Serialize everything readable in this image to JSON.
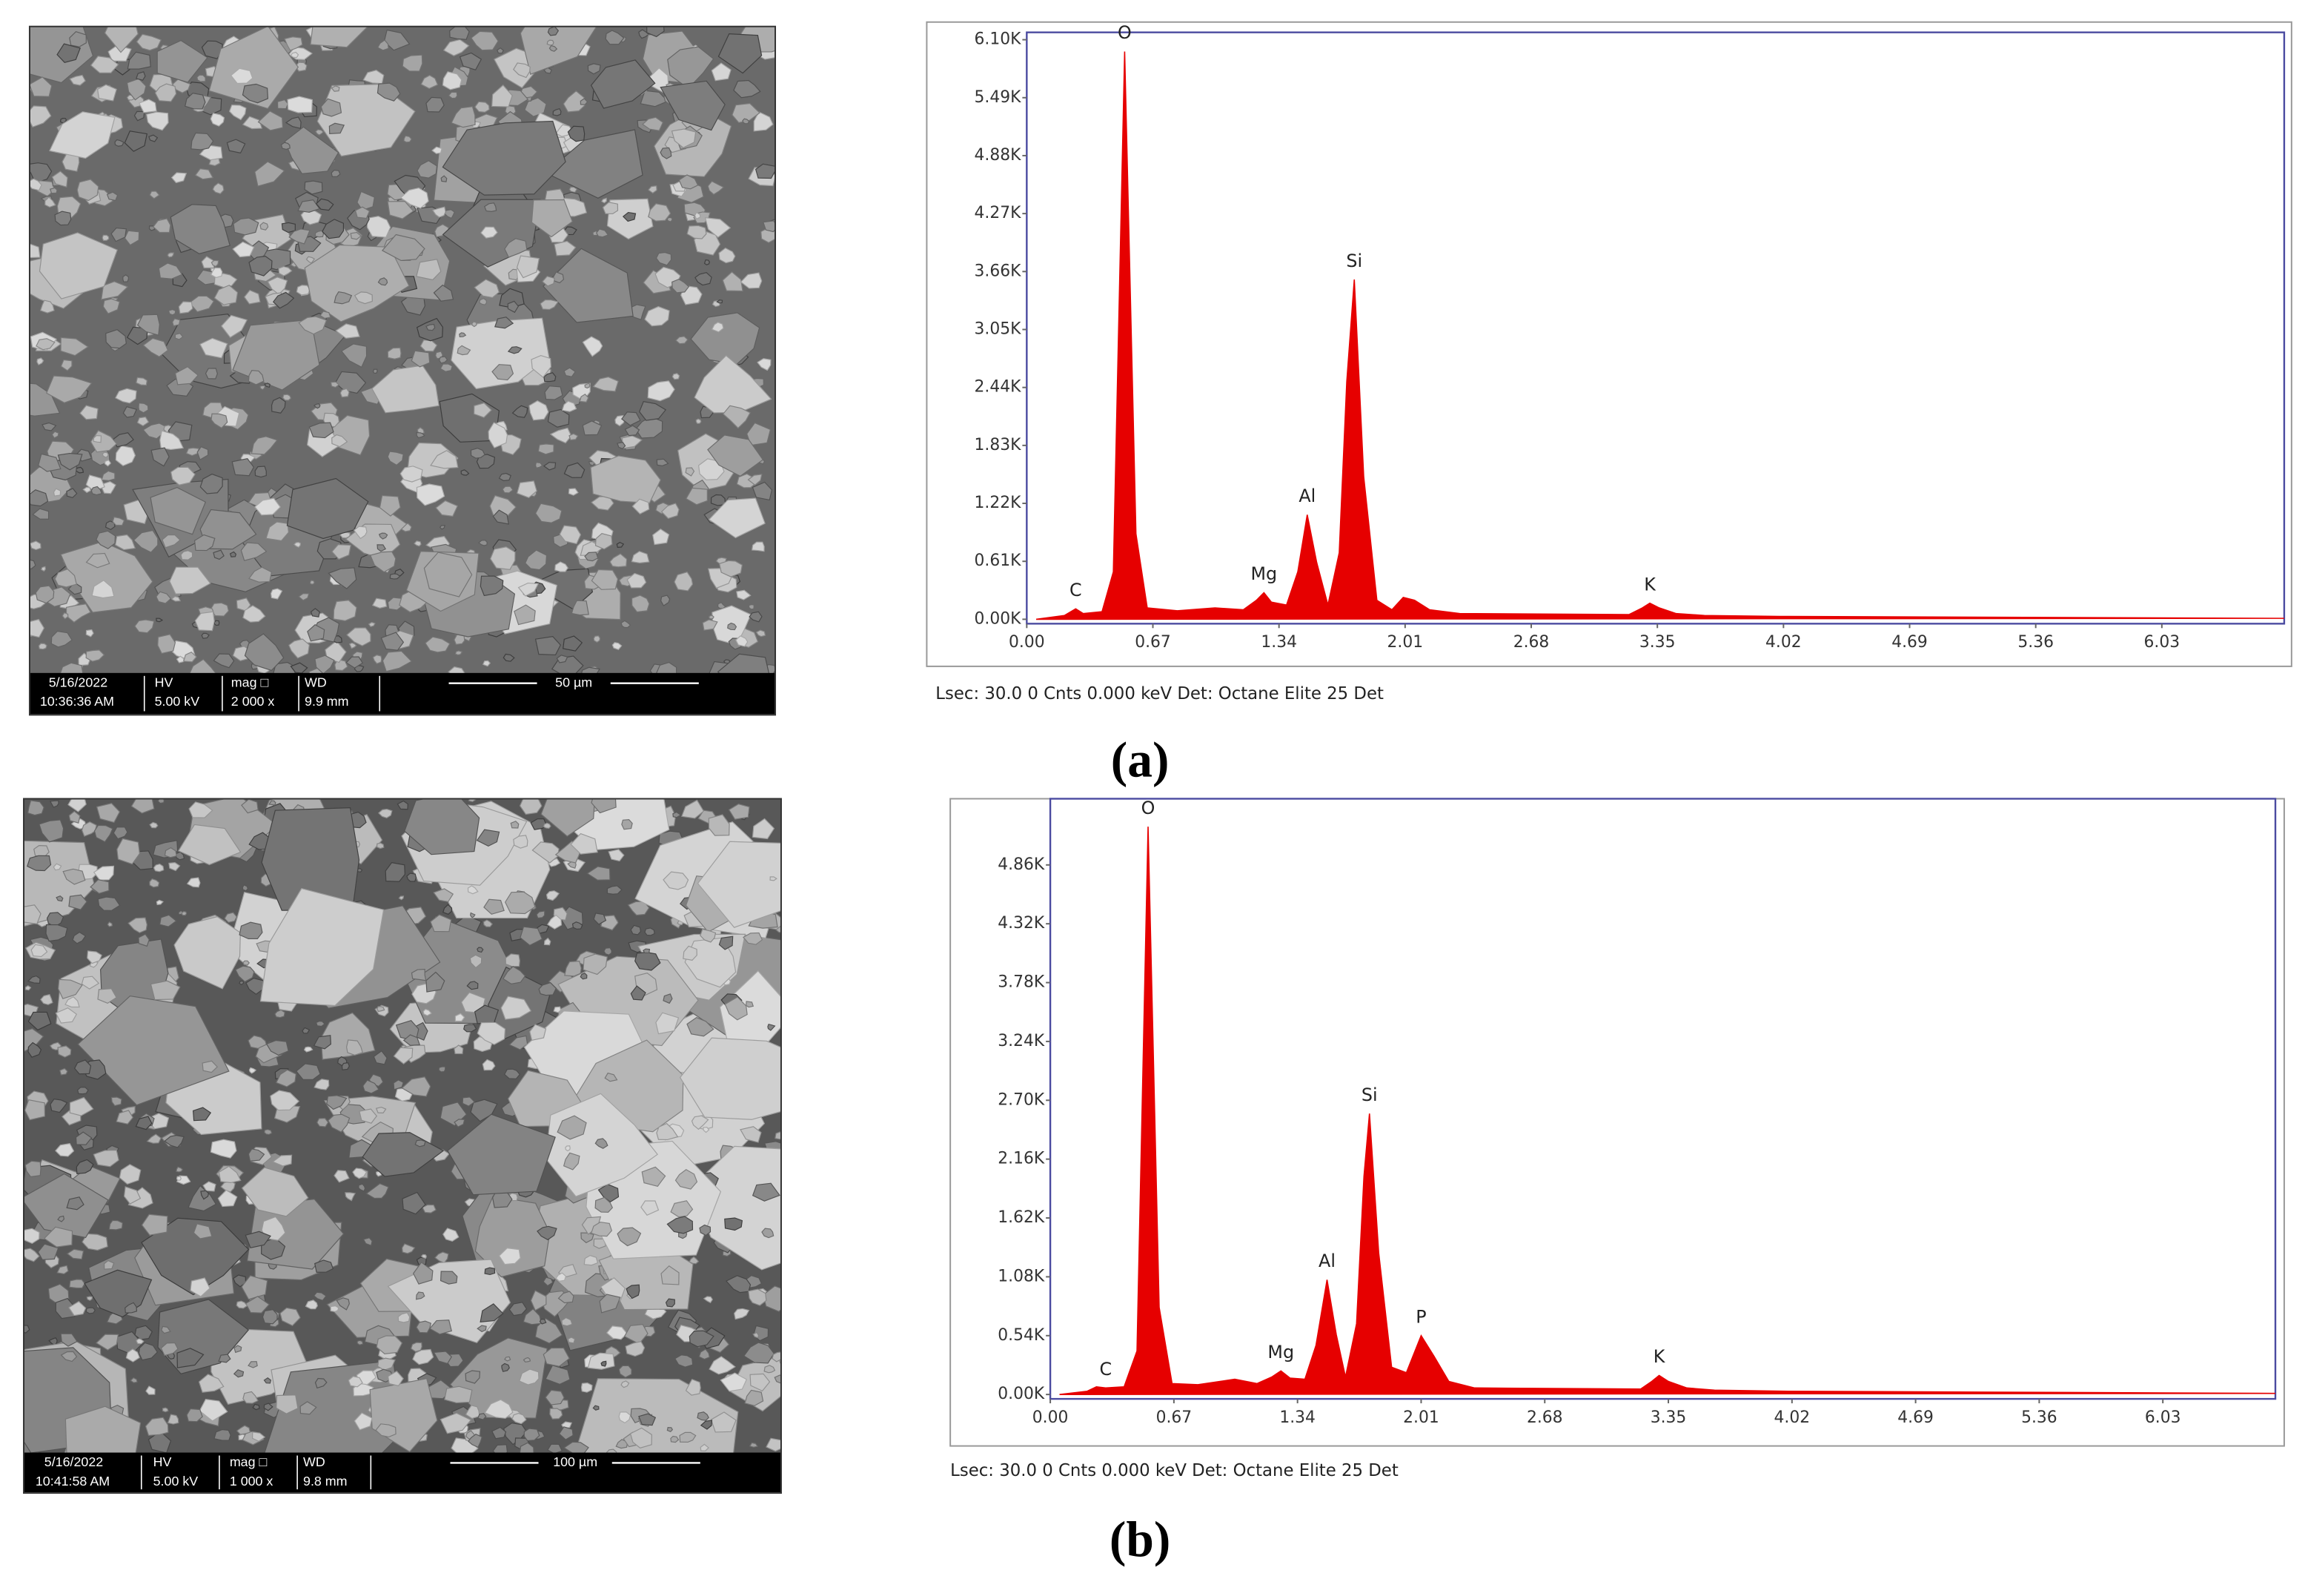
{
  "chart_data": [
    {
      "type": "area",
      "color": "#e60000",
      "x": [
        0.05,
        0.2,
        0.26,
        0.3,
        0.4,
        0.46,
        0.52,
        0.58,
        0.64,
        0.8,
        1.0,
        1.15,
        1.22,
        1.26,
        1.3,
        1.38,
        1.44,
        1.49,
        1.54,
        1.6,
        1.66,
        1.7,
        1.74,
        1.79,
        1.86,
        1.94,
        2.0,
        2.06,
        2.14,
        2.3,
        3.2,
        3.27,
        3.31,
        3.36,
        3.45,
        3.6,
        4.0,
        6.68
      ],
      "values": [
        0,
        40,
        110,
        60,
        80,
        500,
        5976,
        900,
        120,
        90,
        120,
        100,
        200,
        280,
        180,
        150,
        500,
        1100,
        600,
        150,
        700,
        2500,
        3576,
        1500,
        200,
        100,
        230,
        200,
        100,
        60,
        50,
        120,
        170,
        120,
        60,
        40,
        30,
        10
      ],
      "peak_labels": [
        null,
        null,
        "C",
        null,
        null,
        null,
        "O",
        null,
        null,
        null,
        null,
        null,
        null,
        "Mg",
        null,
        null,
        null,
        "Al",
        null,
        null,
        null,
        null,
        "Si",
        null,
        null,
        null,
        null,
        null,
        null,
        null,
        null,
        null,
        "K",
        null,
        null,
        null,
        null,
        null
      ],
      "xlim": [
        0,
        6.68
      ],
      "ylim": [
        0,
        6100
      ],
      "xticks": [
        {
          "value": 0,
          "label": "0.00"
        },
        0.67,
        1.34,
        2.01,
        2.68,
        3.35,
        4.02,
        4.69,
        5.36,
        6.03
      ],
      "yticks": [
        {
          "value": 0,
          "label": "0.00K"
        },
        {
          "value": 610,
          "label": "0.61K"
        },
        {
          "value": 1220,
          "label": "1.22K"
        },
        {
          "value": 1830,
          "label": "1.83K"
        },
        {
          "value": 2440,
          "label": "2.44K"
        },
        {
          "value": 3050,
          "label": "3.05K"
        },
        {
          "value": 3660,
          "label": "3.66K"
        },
        {
          "value": 4270,
          "label": "4.27K"
        },
        {
          "value": 4880,
          "label": "4.88K"
        },
        {
          "value": 5490,
          "label": "5.49K"
        },
        {
          "value": 6100,
          "label": "6.10K"
        }
      ],
      "footer": "Lsec: 30.0 0 Cnts  0.000 keV Det: Octane Elite 25 Det",
      "panel_label": "(a)"
    },
    {
      "type": "area",
      "color": "#e60000",
      "x": [
        0.05,
        0.2,
        0.25,
        0.3,
        0.4,
        0.47,
        0.53,
        0.59,
        0.66,
        0.8,
        1.0,
        1.12,
        1.2,
        1.25,
        1.3,
        1.38,
        1.44,
        1.5,
        1.55,
        1.6,
        1.66,
        1.7,
        1.73,
        1.78,
        1.85,
        1.93,
        2.01,
        2.08,
        2.16,
        2.3,
        3.2,
        3.26,
        3.3,
        3.35,
        3.45,
        3.6,
        4.0,
        6.64
      ],
      "values": [
        0,
        30,
        70,
        60,
        70,
        400,
        5211,
        800,
        100,
        90,
        140,
        100,
        160,
        216,
        150,
        140,
        450,
        1053,
        550,
        160,
        650,
        2000,
        2578,
        1300,
        250,
        200,
        540,
        350,
        120,
        60,
        50,
        120,
        175,
        120,
        60,
        40,
        30,
        10
      ],
      "peak_labels": [
        null,
        null,
        null,
        "C",
        null,
        null,
        "O",
        null,
        null,
        null,
        null,
        null,
        null,
        "Mg",
        null,
        null,
        null,
        "Al",
        null,
        null,
        null,
        null,
        "Si",
        null,
        null,
        null,
        "P",
        null,
        null,
        null,
        null,
        null,
        "K",
        null,
        null,
        null,
        null,
        null
      ],
      "xlim": [
        0,
        6.64
      ],
      "ylim": [
        0,
        5400
      ],
      "xticks": [
        {
          "value": 0,
          "label": "0.00"
        },
        0.67,
        1.34,
        2.01,
        2.68,
        3.35,
        4.02,
        4.69,
        5.36,
        6.03
      ],
      "yticks": [
        {
          "value": 0,
          "label": "0.00K"
        },
        {
          "value": 540,
          "label": "0.54K"
        },
        {
          "value": 1080,
          "label": "1.08K"
        },
        {
          "value": 1620,
          "label": "1.62K"
        },
        {
          "value": 2160,
          "label": "2.16K"
        },
        {
          "value": 2700,
          "label": "2.70K"
        },
        {
          "value": 3240,
          "label": "3.24K"
        },
        {
          "value": 3780,
          "label": "3.78K"
        },
        {
          "value": 4320,
          "label": "4.32K"
        },
        {
          "value": 4860,
          "label": "4.86K"
        }
      ],
      "footer": "Lsec: 30.0 0 Cnts  0.000 keV Det: Octane Elite 25 Det",
      "panel_label": "(b)"
    }
  ],
  "sem_images": [
    {
      "cells": [
        [
          "5/16/2022",
          "10:36:36 AM"
        ],
        [
          "HV",
          "5.00 kV"
        ],
        [
          "mag □",
          "2 000 x"
        ],
        [
          "WD",
          "9.9 mm"
        ]
      ],
      "scale": "50 µm"
    },
    {
      "cells": [
        [
          "5/16/2022",
          "10:41:58 AM"
        ],
        [
          "HV",
          "5.00 kV"
        ],
        [
          "mag □",
          "1 000 x"
        ],
        [
          "WD",
          "9.8 mm"
        ]
      ],
      "scale": "100 µm"
    }
  ]
}
